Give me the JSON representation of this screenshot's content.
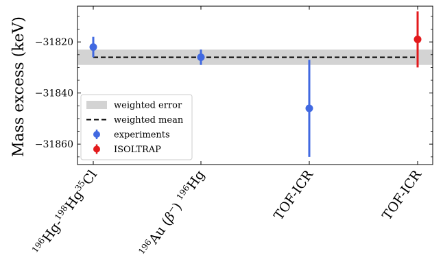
{
  "chart_data": {
    "type": "scatter",
    "ylabel": "Mass excess (keV)",
    "ylim": [
      -31868,
      -31806
    ],
    "yticks": [
      -31820,
      -31840,
      -31860
    ],
    "ytick_labels": [
      "−31820",
      "−31840",
      "−31860"
    ],
    "categories": [
      {
        "parts": [
          [
            "sup",
            "196"
          ],
          [
            "txt",
            "Hg-"
          ],
          [
            "sup",
            "198"
          ],
          [
            "txt",
            "Hg"
          ],
          [
            "sup",
            "35"
          ],
          [
            "txt",
            "Cl"
          ]
        ]
      },
      {
        "parts": [
          [
            "sup",
            "196"
          ],
          [
            "txt",
            "Au ("
          ],
          [
            "it",
            "β"
          ],
          [
            "sup",
            "−"
          ],
          [
            "txt",
            ") "
          ],
          [
            "sup",
            "196"
          ],
          [
            "txt",
            "Hg"
          ]
        ]
      },
      {
        "parts": [
          [
            "txt",
            "TOF-ICR"
          ]
        ]
      },
      {
        "parts": [
          [
            "txt",
            "TOF-ICR"
          ]
        ]
      }
    ],
    "series": [
      {
        "name": "experiments",
        "color": "#4169e1",
        "points": [
          {
            "x": 0,
            "y": -31822,
            "yerr": 4
          },
          {
            "x": 1,
            "y": -31826,
            "yerr": 3
          },
          {
            "x": 2,
            "y": -31846,
            "yerr": 19
          }
        ]
      },
      {
        "name": "ISOLTRAP",
        "color": "#e31a1c",
        "points": [
          {
            "x": 3,
            "y": -31819,
            "yerr": 11
          }
        ]
      }
    ],
    "weighted_mean": {
      "name": "weighted mean",
      "value": -31826
    },
    "weighted_error": {
      "name": "weighted error",
      "low": -31829,
      "high": -31823,
      "color": "#d3d3d3"
    },
    "legend_position": "lower-left",
    "grid": false
  }
}
